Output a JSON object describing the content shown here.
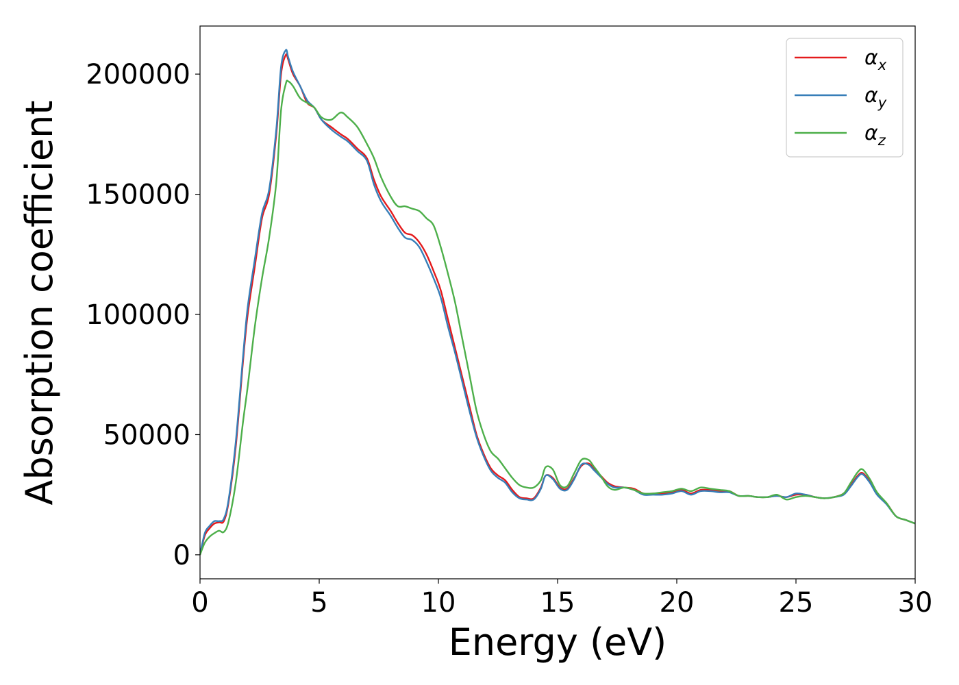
{
  "chart_data": {
    "type": "line",
    "title": "",
    "xlabel": "Energy (eV)",
    "ylabel": "Absorption coefficient",
    "xlim": [
      0,
      30
    ],
    "ylim": [
      -10000,
      220000
    ],
    "xticks": [
      0,
      5,
      10,
      15,
      20,
      25,
      30
    ],
    "xtick_labels": [
      "0",
      "5",
      "10",
      "15",
      "20",
      "25",
      "30"
    ],
    "yticks": [
      0,
      50000,
      100000,
      150000,
      200000
    ],
    "ytick_labels": [
      "0",
      "50000",
      "100000",
      "150000",
      "200000"
    ],
    "grid": false,
    "legend_position": "top-right",
    "x": [
      0,
      0.2,
      0.4,
      0.6,
      0.8,
      1.0,
      1.2,
      1.5,
      1.8,
      2.0,
      2.3,
      2.6,
      2.9,
      3.2,
      3.4,
      3.6,
      3.7,
      3.9,
      4.2,
      4.5,
      4.8,
      5.1,
      5.5,
      5.9,
      6.2,
      6.6,
      7.0,
      7.3,
      7.6,
      8.0,
      8.3,
      8.6,
      8.9,
      9.2,
      9.5,
      9.8,
      10.1,
      10.4,
      10.7,
      11.0,
      11.3,
      11.6,
      11.9,
      12.2,
      12.5,
      12.8,
      13.1,
      13.4,
      13.7,
      14.0,
      14.3,
      14.5,
      14.8,
      15.1,
      15.4,
      15.7,
      16.0,
      16.3,
      16.5,
      16.8,
      17.1,
      17.4,
      17.8,
      18.2,
      18.6,
      19.0,
      19.4,
      19.8,
      20.2,
      20.6,
      21.0,
      21.4,
      21.8,
      22.2,
      22.6,
      23.0,
      23.4,
      23.8,
      24.2,
      24.6,
      25.0,
      25.4,
      25.8,
      26.2,
      26.6,
      27.0,
      27.3,
      27.6,
      27.8,
      28.1,
      28.4,
      28.8,
      29.2,
      29.6,
      30.0
    ],
    "series": [
      {
        "name": "α_x",
        "color": "#e41a1c",
        "values": [
          0,
          8000,
          11000,
          13000,
          13500,
          14000,
          22000,
          45000,
          80000,
          100000,
          120000,
          140000,
          150000,
          175000,
          200000,
          208000,
          206000,
          200000,
          195000,
          188000,
          186000,
          181000,
          178000,
          175000,
          173000,
          169000,
          165000,
          156000,
          149000,
          143000,
          138000,
          134000,
          133000,
          130000,
          125000,
          118000,
          110000,
          98000,
          86000,
          74000,
          62000,
          50000,
          42000,
          36000,
          33000,
          31000,
          27000,
          24000,
          23500,
          23500,
          28000,
          33000,
          32000,
          28000,
          27500,
          32000,
          37000,
          38000,
          36000,
          33000,
          30000,
          28500,
          28000,
          27500,
          25500,
          25500,
          25500,
          26000,
          27000,
          25500,
          27000,
          27000,
          26500,
          26500,
          24500,
          24500,
          24000,
          24000,
          24500,
          24000,
          25000,
          25000,
          24000,
          23500,
          24000,
          25500,
          29000,
          33000,
          34000,
          30500,
          25500,
          21500,
          16000,
          14500,
          13000
        ]
      },
      {
        "name": "α_y",
        "color": "#377eb8",
        "values": [
          0,
          9000,
          12000,
          14000,
          14000,
          15000,
          23000,
          47000,
          82000,
          103000,
          123000,
          142000,
          152000,
          177000,
          203000,
          210000,
          207000,
          201000,
          195000,
          189000,
          186000,
          181000,
          177000,
          174000,
          172000,
          168000,
          164000,
          154000,
          147000,
          141000,
          136000,
          132000,
          131000,
          128000,
          122000,
          115000,
          107000,
          95000,
          84000,
          72000,
          60000,
          49000,
          41000,
          35000,
          32000,
          30000,
          26000,
          23500,
          23000,
          23000,
          27500,
          33000,
          31500,
          27500,
          27000,
          31500,
          37500,
          37500,
          35500,
          32500,
          29500,
          28000,
          28000,
          27000,
          25000,
          25000,
          25000,
          25500,
          26500,
          25000,
          26500,
          26500,
          26000,
          26000,
          24500,
          24500,
          24000,
          24000,
          24500,
          24000,
          25500,
          25000,
          24000,
          23500,
          24000,
          25000,
          28500,
          32500,
          33500,
          30000,
          25000,
          21000,
          16000,
          14500,
          13000
        ]
      },
      {
        "name": "α_z",
        "color": "#4daf4a",
        "values": [
          0,
          5000,
          7500,
          9000,
          10000,
          9500,
          14000,
          30000,
          55000,
          70000,
          95000,
          115000,
          132000,
          155000,
          185000,
          196000,
          197000,
          195000,
          190000,
          188000,
          186000,
          182000,
          181000,
          184000,
          182000,
          178000,
          171000,
          165000,
          157000,
          149000,
          145000,
          145000,
          144000,
          143000,
          140000,
          137000,
          128000,
          117000,
          105000,
          90000,
          75000,
          60000,
          50000,
          43000,
          40000,
          36000,
          32000,
          29000,
          28000,
          28000,
          31000,
          36500,
          35500,
          29000,
          28500,
          34000,
          39500,
          39500,
          37000,
          33000,
          28500,
          27000,
          28000,
          27000,
          25500,
          25500,
          26000,
          26500,
          27500,
          26500,
          28000,
          27500,
          27000,
          26500,
          24500,
          24500,
          24000,
          24000,
          25000,
          23000,
          24000,
          24500,
          24000,
          23500,
          24000,
          25500,
          30000,
          34500,
          35500,
          31500,
          26000,
          21500,
          16000,
          14500,
          13000
        ]
      }
    ]
  }
}
